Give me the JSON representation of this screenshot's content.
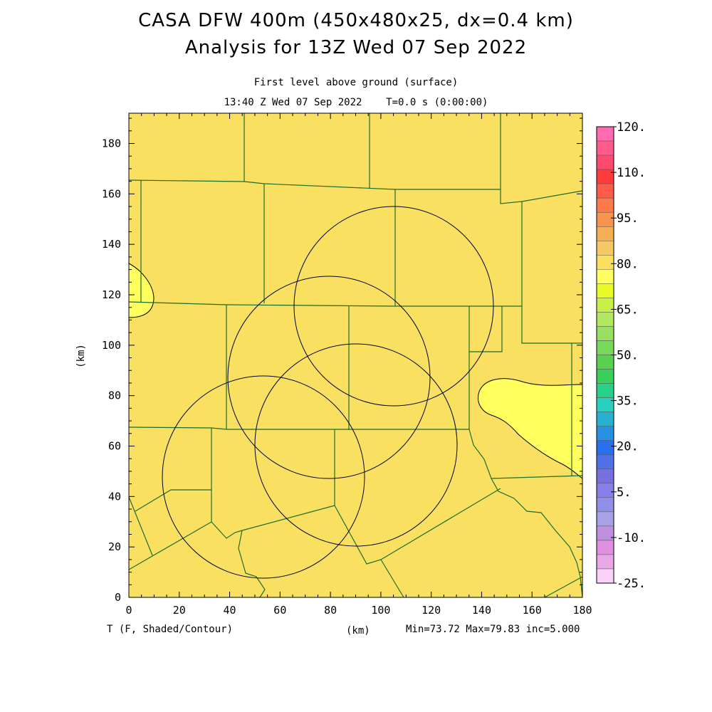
{
  "header": {
    "title_line1": "CASA DFW 400m (450x480x25, dx=0.4 km)",
    "title_line2": "Analysis for 13Z Wed 07 Sep 2022",
    "subtitle_line1": "First level above ground (surface)",
    "subtitle_line2": "13:40 Z Wed 07 Sep 2022    T=0.0 s (0:00:00)"
  },
  "axes": {
    "x_ticks": [
      "0",
      "20",
      "40",
      "60",
      "80",
      "100",
      "120",
      "140",
      "160",
      "180"
    ],
    "y_ticks": [
      "0",
      "20",
      "40",
      "60",
      "80",
      "100",
      "120",
      "140",
      "160",
      "180"
    ],
    "y_label": "(km)",
    "x_label": "(km)",
    "x_range": [
      0,
      180
    ],
    "y_range": [
      0,
      192
    ]
  },
  "colorbar": {
    "labels": [
      "120.",
      "110.",
      "95.",
      "80.",
      "65.",
      "50.",
      "35.",
      "20.",
      "5.",
      "-10.",
      "-25."
    ],
    "colors": [
      "#ff6ab0",
      "#ff5a8a",
      "#ff4a70",
      "#ff3a3a",
      "#ff5a4a",
      "#ff7a4a",
      "#f9944f",
      "#f6ae55",
      "#f4c862",
      "#fbe060",
      "#ffff60",
      "#e8fa28",
      "#c8f048",
      "#b0e860",
      "#98e060",
      "#78d858",
      "#58d050",
      "#38d058",
      "#28d088",
      "#28d0c0",
      "#28b0d0",
      "#2890e0",
      "#2870f0",
      "#5070e8",
      "#7870e0",
      "#8880e8",
      "#9090e8",
      "#a8a0e8",
      "#c090e0",
      "#e090e0",
      "#e8a8e8",
      "#f8d0f8"
    ]
  },
  "field": {
    "background_color": "#fae061",
    "warm_anomaly_color": "#ffff5e",
    "boundary_color": "#1c6e2a",
    "radar_ring_color": "#000033"
  },
  "footer": {
    "left": "T (F, Shaded/Contour)",
    "center": "(km)",
    "right": "Min=73.72 Max=79.83 inc=5.000"
  }
}
